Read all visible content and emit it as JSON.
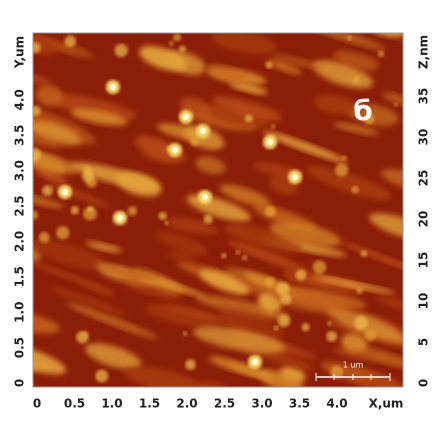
{
  "image": {
    "label": "б",
    "scale_bar": "1 um",
    "x_axis": {
      "title": "X,um",
      "ticks": [
        0,
        0.5,
        {
          "value": 1,
          "label": "1.0"
        },
        1.5,
        {
          "value": 2,
          "label": "2.0"
        },
        2.5,
        {
          "value": 3,
          "label": "3.0"
        },
        3.5,
        {
          "value": 4,
          "label": "4.0"
        }
      ]
    },
    "y_axis": {
      "title": "Y,um",
      "ticks": [
        0,
        0.5,
        {
          "value": 1,
          "label": "1.0"
        },
        1.5,
        {
          "value": 2,
          "label": "2.0"
        },
        2.5,
        {
          "value": 3,
          "label": "3.0"
        },
        3.5,
        {
          "value": 4,
          "label": "4.0"
        }
      ]
    },
    "z_axis": {
      "title": "Z,nm",
      "ticks": [
        0,
        5,
        10,
        15,
        20,
        25,
        30,
        35
      ]
    }
  }
}
